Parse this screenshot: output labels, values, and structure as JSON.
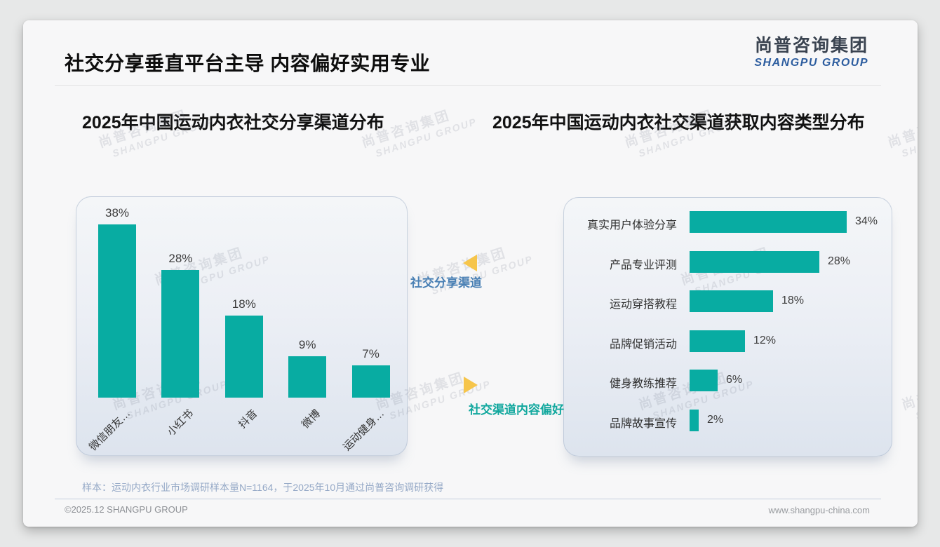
{
  "page": {
    "title": "社交分享垂直平台主导 内容偏好实用专业",
    "logo": {
      "cn": "尚普咨询集团",
      "en": "SHANGPU GROUP"
    },
    "watermark": {
      "cn": "尚普咨询集团",
      "en": "SHANGPU GROUP"
    },
    "annotations": {
      "share_channels_label": "社交分享渠道",
      "content_preference_label": "社交渠道内容偏好"
    },
    "footer": {
      "sample_note": "样本：运动内衣行业市场调研样本量N=1164，于2025年10月通过尚普咨询调研获得",
      "copyright": "©2025.12 SHANGPU GROUP",
      "website": "www.shangpu-china.com"
    },
    "colors": {
      "bar_teal": "#08aca2",
      "triangle_yellow": "#f6c54b",
      "annotation_blue": "#4a80b4",
      "annotation_teal": "#12a89e",
      "logo_blue": "#2d5d9f"
    }
  },
  "chart_data": [
    {
      "type": "bar",
      "orientation": "vertical",
      "title": "2025年中国运动内衣社交分享渠道分布",
      "categories": [
        "微信朋友…",
        "小红书",
        "抖音",
        "微博",
        "运动健身…"
      ],
      "values": [
        38,
        28,
        18,
        9,
        7
      ],
      "unit": "%",
      "data_labels": [
        "38%",
        "28%",
        "18%",
        "9%",
        "7%"
      ],
      "ylim": [
        0,
        40
      ],
      "grid": false,
      "legend": false,
      "bar_color": "#08aca2"
    },
    {
      "type": "bar",
      "orientation": "horizontal",
      "title": "2025年中国运动内衣社交渠道获取内容类型分布",
      "categories": [
        "真实用户体验分享",
        "产品专业评测",
        "运动穿搭教程",
        "品牌促销活动",
        "健身教练推荐",
        "品牌故事宣传"
      ],
      "values": [
        34,
        28,
        18,
        12,
        6,
        2
      ],
      "unit": "%",
      "data_labels": [
        "34%",
        "28%",
        "18%",
        "12%",
        "6%",
        "2%"
      ],
      "xlim": [
        0,
        36
      ],
      "grid": false,
      "legend": false,
      "bar_color": "#08aca2"
    }
  ]
}
